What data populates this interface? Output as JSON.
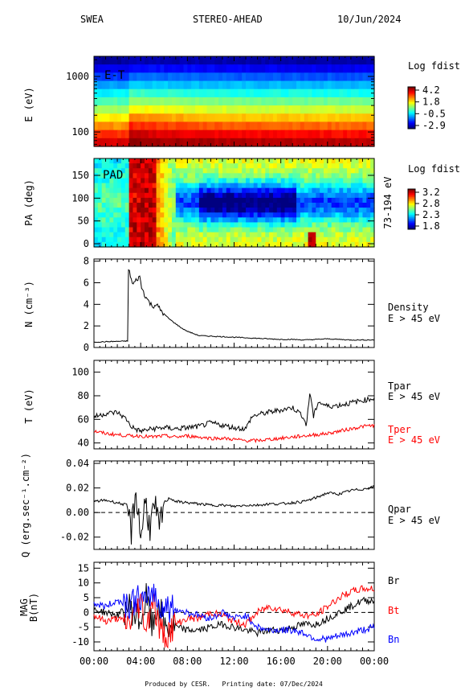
{
  "header": {
    "instrument": "SWEA",
    "spacecraft": "STEREO-AHEAD",
    "date": "10/Jun/2024"
  },
  "footer": "Produced by CESR.   Printing date: 07/Dec/2024",
  "colors": {
    "black": "#000000",
    "red": "#ff0000",
    "blue": "#0000ff"
  },
  "chart_data": [
    {
      "type": "heatmap",
      "panel_label": "E-T",
      "ylabel": "E (eV)",
      "y_scale": "log",
      "yticks": [
        "100",
        "1000"
      ],
      "colorbar": {
        "title": "Log fdist",
        "ticks": [
          "4.2",
          "1.8",
          "-0.5",
          "-2.9"
        ],
        "range": [
          -2.9,
          4.2
        ]
      },
      "energy_rows_eV": [
        2000,
        1400,
        1000,
        700,
        500,
        350,
        250,
        175,
        125,
        90,
        65
      ],
      "levels_quiet": [
        -2.7,
        -2.2,
        -1.6,
        -0.9,
        -0.3,
        0.3,
        0.9,
        1.6,
        2.3,
        3.0,
        3.6
      ],
      "levels_enhanced": [
        -2.5,
        -1.9,
        -1.2,
        -0.5,
        0.2,
        0.9,
        1.6,
        2.4,
        3.1,
        3.7,
        4.1
      ]
    },
    {
      "type": "heatmap",
      "panel_label": "PAD",
      "ylabel": "PA (deg)",
      "right_label": "73-194 eV",
      "yticks": [
        "0",
        "50",
        "100",
        "150"
      ],
      "ylim": [
        0,
        180
      ],
      "colorbar": {
        "title": "Log fdist",
        "ticks": [
          "3.2",
          "2.8",
          "2.3",
          "1.8"
        ],
        "range": [
          1.8,
          3.2
        ]
      }
    },
    {
      "type": "line",
      "ylabel": "N (cm⁻³)",
      "yticks": [
        "0",
        "2",
        "4",
        "6",
        "8"
      ],
      "ylim": [
        0,
        8.2
      ],
      "series": [
        {
          "name": "Density",
          "sublabel": "E > 45 eV",
          "color": "#000000",
          "x": [
            0,
            2.9,
            2.95,
            3.1,
            3.3,
            3.6,
            3.9,
            4.1,
            4.3,
            4.6,
            5.0,
            5.3,
            5.7,
            6.0,
            6.5,
            7.0,
            7.5,
            8.0,
            8.5,
            9.0,
            10.0,
            11.0,
            12.0,
            13.0,
            14.0,
            15.0,
            16.0,
            17.0,
            18.0,
            19.0,
            20.0,
            21.0,
            22.0,
            23.0,
            24.0
          ],
          "y": [
            0.5,
            0.6,
            7.2,
            6.8,
            5.8,
            6.2,
            6.6,
            5.5,
            5.0,
            4.4,
            3.8,
            4.0,
            3.5,
            3.1,
            2.6,
            2.2,
            1.8,
            1.5,
            1.3,
            1.1,
            1.05,
            1.0,
            0.95,
            0.9,
            0.85,
            0.8,
            0.75,
            0.75,
            0.7,
            0.75,
            0.8,
            0.75,
            0.7,
            0.7,
            0.7
          ]
        }
      ]
    },
    {
      "type": "line",
      "ylabel": "T (eV)",
      "yticks": [
        "40",
        "60",
        "80",
        "100"
      ],
      "ylim": [
        35,
        110
      ],
      "series": [
        {
          "name": "Tpar",
          "sublabel": "E > 45 eV",
          "color": "#000000",
          "x": [
            0,
            1,
            2,
            2.8,
            3.1,
            3.5,
            4,
            5,
            6,
            7,
            8,
            9,
            10,
            11,
            12,
            13,
            13.5,
            14,
            15,
            16,
            17,
            17.8,
            18.2,
            18.5,
            18.8,
            19.2,
            20,
            21,
            22,
            23,
            24
          ],
          "y": [
            62,
            65,
            66,
            60,
            55,
            52,
            50,
            52,
            53,
            52,
            53,
            54,
            57,
            55,
            53,
            52,
            62,
            64,
            66,
            68,
            70,
            64,
            55,
            84,
            62,
            75,
            71,
            72,
            74,
            76,
            78
          ]
        },
        {
          "name": "Tper",
          "sublabel": "E > 45 eV",
          "color": "#ff0000",
          "x": [
            0,
            1,
            2,
            3,
            4,
            5,
            6,
            7,
            8,
            9,
            10,
            11,
            12,
            13,
            14,
            15,
            16,
            17,
            18,
            19,
            20,
            21,
            22,
            23,
            24
          ],
          "y": [
            50,
            48,
            47,
            46,
            46,
            45,
            46,
            45,
            46,
            45,
            44,
            44,
            43,
            42,
            42,
            43,
            44,
            45,
            46,
            47,
            48,
            50,
            52,
            54,
            55
          ]
        }
      ]
    },
    {
      "type": "line",
      "ylabel": "Q (erg.sec⁻¹.cm⁻²)",
      "yticks": [
        "-0.02",
        "0.00",
        "0.02",
        "0.04"
      ],
      "ylim": [
        -0.03,
        0.042
      ],
      "series": [
        {
          "name": "Qpar",
          "sublabel": "E > 45 eV",
          "color": "#000000",
          "x": [
            0,
            1,
            2,
            2.8,
            3.2,
            3.6,
            4.0,
            4.4,
            4.8,
            5.2,
            5.6,
            6.0,
            6.5,
            7,
            8,
            9,
            10,
            11,
            12,
            13,
            14,
            15,
            16,
            17,
            18,
            19,
            20,
            21,
            22,
            23,
            24
          ],
          "y": [
            0.009,
            0.01,
            0.008,
            0.006,
            -0.015,
            0.018,
            -0.02,
            0.01,
            -0.012,
            0.005,
            -0.015,
            0.008,
            0.012,
            0.009,
            0.008,
            0.007,
            0.006,
            0.006,
            0.005,
            0.006,
            0.006,
            0.007,
            0.007,
            0.008,
            0.009,
            0.012,
            0.016,
            0.015,
            0.018,
            0.019,
            0.021
          ]
        }
      ]
    },
    {
      "type": "line",
      "ylabel": "MAG\nB(nT)",
      "yticks": [
        "-10",
        "-5",
        "0",
        "5",
        "10",
        "15"
      ],
      "ylim": [
        -13,
        17
      ],
      "series": [
        {
          "name": "Br",
          "color": "#000000",
          "x": [
            0,
            1,
            2,
            3,
            4,
            4.5,
            5,
            5.5,
            6,
            7,
            8,
            9,
            10,
            11,
            12,
            13,
            14,
            15,
            16,
            17,
            18,
            19,
            20,
            21,
            22,
            23,
            24
          ],
          "y": [
            1,
            0,
            -1,
            2,
            -3,
            5,
            -6,
            4,
            -5,
            -5,
            -6,
            -6,
            -5,
            -4,
            -5,
            -6,
            -7,
            -6,
            -6,
            -5,
            -4,
            -4,
            -2,
            0,
            2,
            4,
            4
          ]
        },
        {
          "name": "Bt",
          "color": "#ff0000",
          "x": [
            0,
            1,
            2,
            3,
            4,
            4.5,
            5,
            5.5,
            6,
            7,
            8,
            9,
            10,
            11,
            12,
            13,
            14,
            15,
            16,
            17,
            18,
            19,
            20,
            21,
            22,
            23,
            24
          ],
          "y": [
            -1,
            -3,
            -2,
            -4,
            4,
            -6,
            6,
            -4,
            -8,
            -4,
            -2,
            -2,
            0,
            -1,
            -3,
            -4,
            0,
            2,
            1,
            0,
            -1,
            -1,
            2,
            5,
            7,
            8,
            8
          ]
        },
        {
          "name": "Bn",
          "color": "#0000ff",
          "x": [
            0,
            1,
            2,
            3,
            4,
            4.5,
            5,
            5.5,
            6,
            7,
            8,
            9,
            10,
            11,
            12,
            13,
            14,
            15,
            16,
            17,
            18,
            19,
            20,
            21,
            22,
            23,
            24
          ],
          "y": [
            3,
            2,
            4,
            3,
            5,
            2,
            8,
            3,
            2,
            1,
            0,
            -1,
            -2,
            0,
            -2,
            -1,
            -5,
            -6,
            -6,
            -6,
            -7,
            -9,
            -9,
            -8,
            -7,
            -6,
            -5
          ]
        }
      ]
    }
  ],
  "xaxis": {
    "ticks": [
      "00:00",
      "04:00",
      "08:00",
      "12:00",
      "16:00",
      "20:00",
      "00:00"
    ],
    "range_hours": [
      0,
      24
    ]
  }
}
